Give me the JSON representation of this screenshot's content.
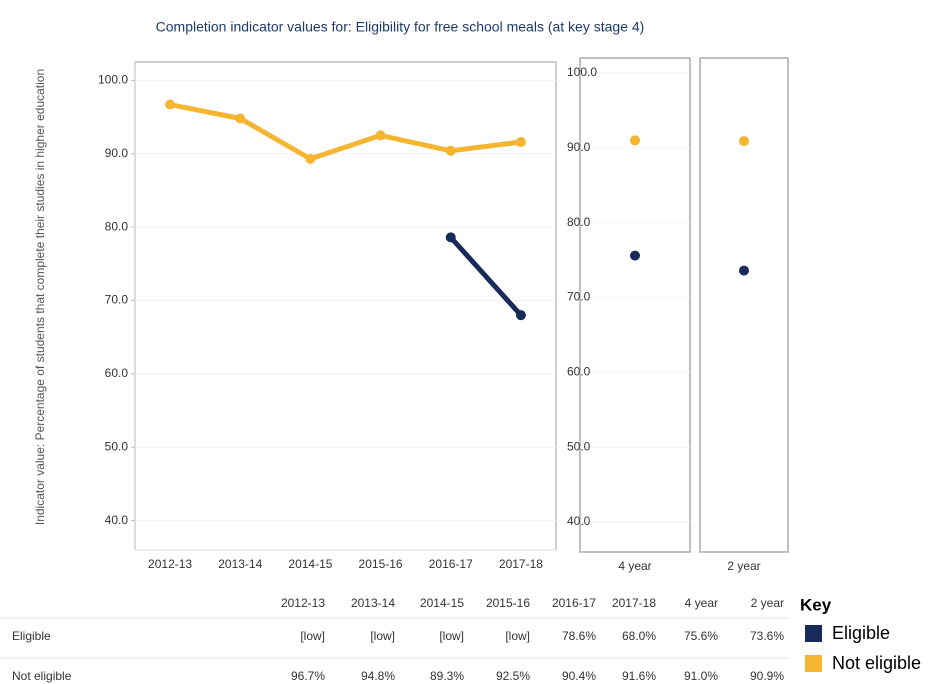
{
  "chart_data": [
    {
      "type": "line",
      "title": "Completion indicator values for: Eligibility for free school meals (at key stage 4)",
      "y_label": "Indicator value: Percentage of students that complete their studies in higher education",
      "categories": [
        "2012-13",
        "2013-14",
        "2014-15",
        "2015-16",
        "2016-17",
        "2017-18"
      ],
      "series": [
        {
          "name": "Eligible",
          "color": "#172a5a",
          "values": [
            null,
            null,
            null,
            null,
            78.6,
            68.0
          ]
        },
        {
          "name": "Not eligible",
          "color": "#f4b531",
          "values": [
            96.7,
            94.8,
            89.3,
            92.5,
            90.4,
            91.6
          ]
        }
      ],
      "ylim": [
        36,
        102.5
      ],
      "yticks": [
        {
          "value": 40,
          "label": "40.0"
        },
        {
          "value": 50,
          "label": "50.0"
        },
        {
          "value": 60,
          "label": "60.0"
        },
        {
          "value": 70,
          "label": "70.0"
        },
        {
          "value": 80,
          "label": "80.0"
        },
        {
          "value": 90,
          "label": "90.0"
        },
        {
          "value": 100,
          "label": "100.0"
        }
      ],
      "grid": true
    },
    {
      "type": "scatter",
      "categories": [
        "4 year"
      ],
      "series": [
        {
          "color": "#172a5a",
          "values": [
            75.6
          ]
        },
        {
          "color": "#f4b531",
          "values": [
            91.0
          ]
        }
      ],
      "ylim": [
        36,
        102
      ],
      "yticks": [
        {
          "value": 40,
          "label": "40.0"
        },
        {
          "value": 50,
          "label": "50.0"
        },
        {
          "value": 60,
          "label": "60.0"
        },
        {
          "value": 70,
          "label": "70.0"
        },
        {
          "value": 80,
          "label": "80.0"
        },
        {
          "value": 90,
          "label": "90.0"
        },
        {
          "value": 100,
          "label": "100.0"
        }
      ],
      "grid": true
    },
    {
      "type": "scatter",
      "categories": [
        "2 year"
      ],
      "series": [
        {
          "color": "#172a5a",
          "values": [
            73.6
          ]
        },
        {
          "color": "#f4b531",
          "values": [
            90.9
          ]
        }
      ],
      "ylim": [
        36,
        102
      ],
      "grid": true
    }
  ],
  "table": {
    "header": [
      "2012-13",
      "2013-14",
      "2014-15",
      "2015-16",
      "2016-17",
      "2017-18",
      "4 year",
      "2 year"
    ],
    "rows": [
      [
        "Eligible",
        "[low]",
        "[low]",
        "[low]",
        "[low]",
        "78.6%",
        "68.0%",
        "75.6%",
        "73.6%"
      ],
      [
        "Not eligible",
        "96.7%",
        "94.8%",
        "89.3%",
        "92.5%",
        "90.4%",
        "91.6%",
        "91.0%",
        "90.9%"
      ]
    ]
  },
  "key": {
    "title": "Key"
  }
}
